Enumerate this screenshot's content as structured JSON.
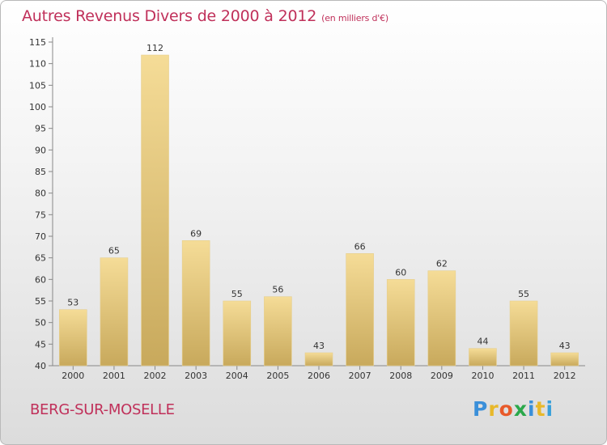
{
  "title": "Autres Revenus Divers de 2000 à 2012",
  "subtitle": "(en milliers d'€)",
  "place": "BERG-SUR-MOSELLE",
  "logo": {
    "letters": [
      "P",
      "r",
      "o",
      "x",
      "i",
      "t",
      "i"
    ],
    "colors": [
      "#3a8fd9",
      "#e8b82a",
      "#e85a2a",
      "#2aa84a",
      "#3a8fd9",
      "#e8b82a",
      "#3aa0d9"
    ]
  },
  "chart_data": {
    "type": "bar",
    "title": "Autres Revenus Divers de 2000 à 2012",
    "subtitle": "(en milliers d'€)",
    "categories": [
      "2000",
      "2001",
      "2002",
      "2003",
      "2004",
      "2005",
      "2006",
      "2007",
      "2008",
      "2009",
      "2010",
      "2011",
      "2012"
    ],
    "values": [
      53,
      65,
      112,
      69,
      55,
      56,
      43,
      66,
      60,
      62,
      44,
      55,
      43
    ],
    "ylim": [
      40,
      115
    ],
    "yticks": [
      40,
      45,
      50,
      55,
      60,
      65,
      70,
      75,
      80,
      85,
      90,
      95,
      100,
      105,
      110,
      115
    ],
    "grid": false,
    "bar_color_light": "#f5dc97",
    "bar_color_dark": "#c8a95c"
  }
}
